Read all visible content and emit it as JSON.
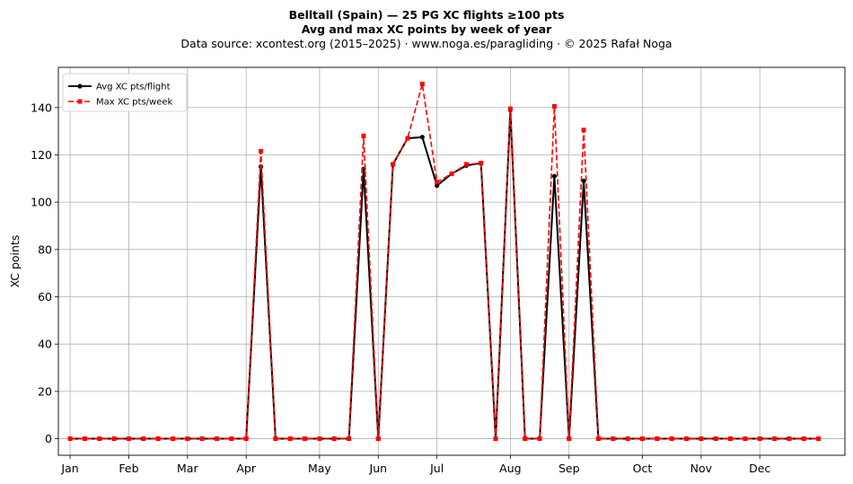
{
  "titles": {
    "line1": "Belltall (Spain)  —  25 PG XC flights ≥100 pts",
    "line2": "Avg and max XC points by week of year",
    "line3": "Data source: xcontest.org (2015–2025)  ·  www.noga.es/paragliding  ·  © 2025 Rafał Noga"
  },
  "colors": {
    "avg": "#000000",
    "max": "#ff0000",
    "grid": "#b0b0b0"
  },
  "chart_data": {
    "type": "line",
    "title": "Belltall (Spain)  —  25 PG XC flights ≥100 pts",
    "subtitle": "Avg and max XC points by week of year",
    "xlabel": "",
    "ylabel": "XC points",
    "x": [
      1,
      2,
      3,
      4,
      5,
      6,
      7,
      8,
      9,
      10,
      11,
      12,
      13,
      14,
      15,
      16,
      17,
      18,
      19,
      20,
      21,
      22,
      23,
      24,
      25,
      26,
      27,
      28,
      29,
      30,
      31,
      32,
      33,
      34,
      35,
      36,
      37,
      38,
      39,
      40,
      41,
      42,
      43,
      44,
      45,
      46,
      47,
      48,
      49,
      50,
      51,
      52
    ],
    "x_ticks": [
      {
        "label": "Jan",
        "x": 1
      },
      {
        "label": "Feb",
        "x": 5
      },
      {
        "label": "Mar",
        "x": 9
      },
      {
        "label": "Apr",
        "x": 13
      },
      {
        "label": "May",
        "x": 18
      },
      {
        "label": "Jun",
        "x": 22
      },
      {
        "label": "Jul",
        "x": 26
      },
      {
        "label": "Aug",
        "x": 31
      },
      {
        "label": "Sep",
        "x": 35
      },
      {
        "label": "Oct",
        "x": 40
      },
      {
        "label": "Nov",
        "x": 44
      },
      {
        "label": "Dec",
        "x": 48
      }
    ],
    "xlim": [
      0.2,
      53.8
    ],
    "ylim": [
      -7,
      157
    ],
    "y_ticks": [
      0,
      20,
      40,
      60,
      80,
      100,
      120,
      140
    ],
    "grid": true,
    "legend": "top-left",
    "series": [
      {
        "name": "Avg XC pts/flight",
        "style": "solid",
        "marker": "circle",
        "values": [
          0,
          0,
          0,
          0,
          0,
          0,
          0,
          0,
          0,
          0,
          0,
          0,
          0,
          115,
          0,
          0,
          0,
          0,
          0,
          0,
          114,
          0,
          116,
          127,
          127.5,
          107,
          112,
          115.5,
          116.5,
          0,
          139,
          0,
          0,
          111,
          0,
          109,
          0,
          0,
          0,
          0,
          0,
          0,
          0,
          0,
          0,
          0,
          0,
          0,
          0,
          0,
          0,
          0
        ]
      },
      {
        "name": "Max XC pts/week",
        "style": "dashed",
        "marker": "square",
        "values": [
          0,
          0,
          0,
          0,
          0,
          0,
          0,
          0,
          0,
          0,
          0,
          0,
          0,
          121.5,
          0,
          0,
          0,
          0,
          0,
          0,
          128,
          0,
          116,
          127,
          150,
          108.5,
          112,
          116,
          116.5,
          0,
          139.5,
          0,
          0,
          140.5,
          0,
          130.5,
          0,
          0,
          0,
          0,
          0,
          0,
          0,
          0,
          0,
          0,
          0,
          0,
          0,
          0,
          0,
          0
        ]
      }
    ]
  }
}
